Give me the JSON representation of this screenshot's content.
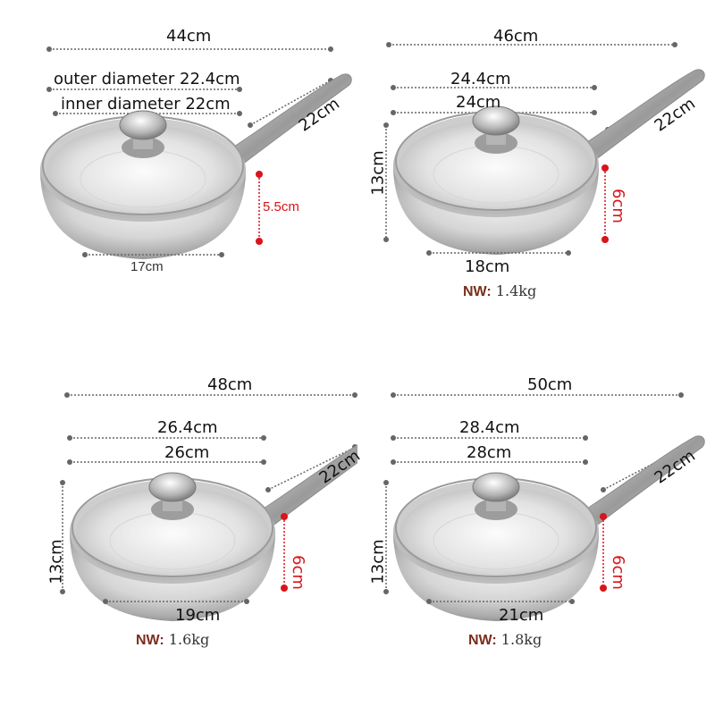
{
  "panels": [
    {
      "length": "44cm",
      "outer": "outer diameter 22.4cm",
      "inner": "inner diameter 22cm",
      "handle": "22cm",
      "depth": "5.5cm",
      "base": "17cm"
    },
    {
      "length": "46cm",
      "outer": "24.4cm",
      "inner": "24cm",
      "handle": "22cm",
      "height": "13cm",
      "depth": "6cm",
      "base": "18cm",
      "nw_label": "NW:",
      "nw_value": "1.4kg"
    },
    {
      "length": "48cm",
      "outer": "26.4cm",
      "inner": "26cm",
      "handle": "22cm",
      "height": "13cm",
      "depth": "6cm",
      "base": "19cm",
      "nw_label": "NW:",
      "nw_value": "1.6kg"
    },
    {
      "length": "50cm",
      "outer": "28.4cm",
      "inner": "28cm",
      "handle": "22cm",
      "height": "13cm",
      "depth": "6cm",
      "base": "21cm",
      "nw_label": "NW:",
      "nw_value": "1.8kg"
    }
  ],
  "colors": {
    "dimension_line": "#666666",
    "depth_marker": "#d9141b",
    "nw_label": "#7a2e1c"
  }
}
